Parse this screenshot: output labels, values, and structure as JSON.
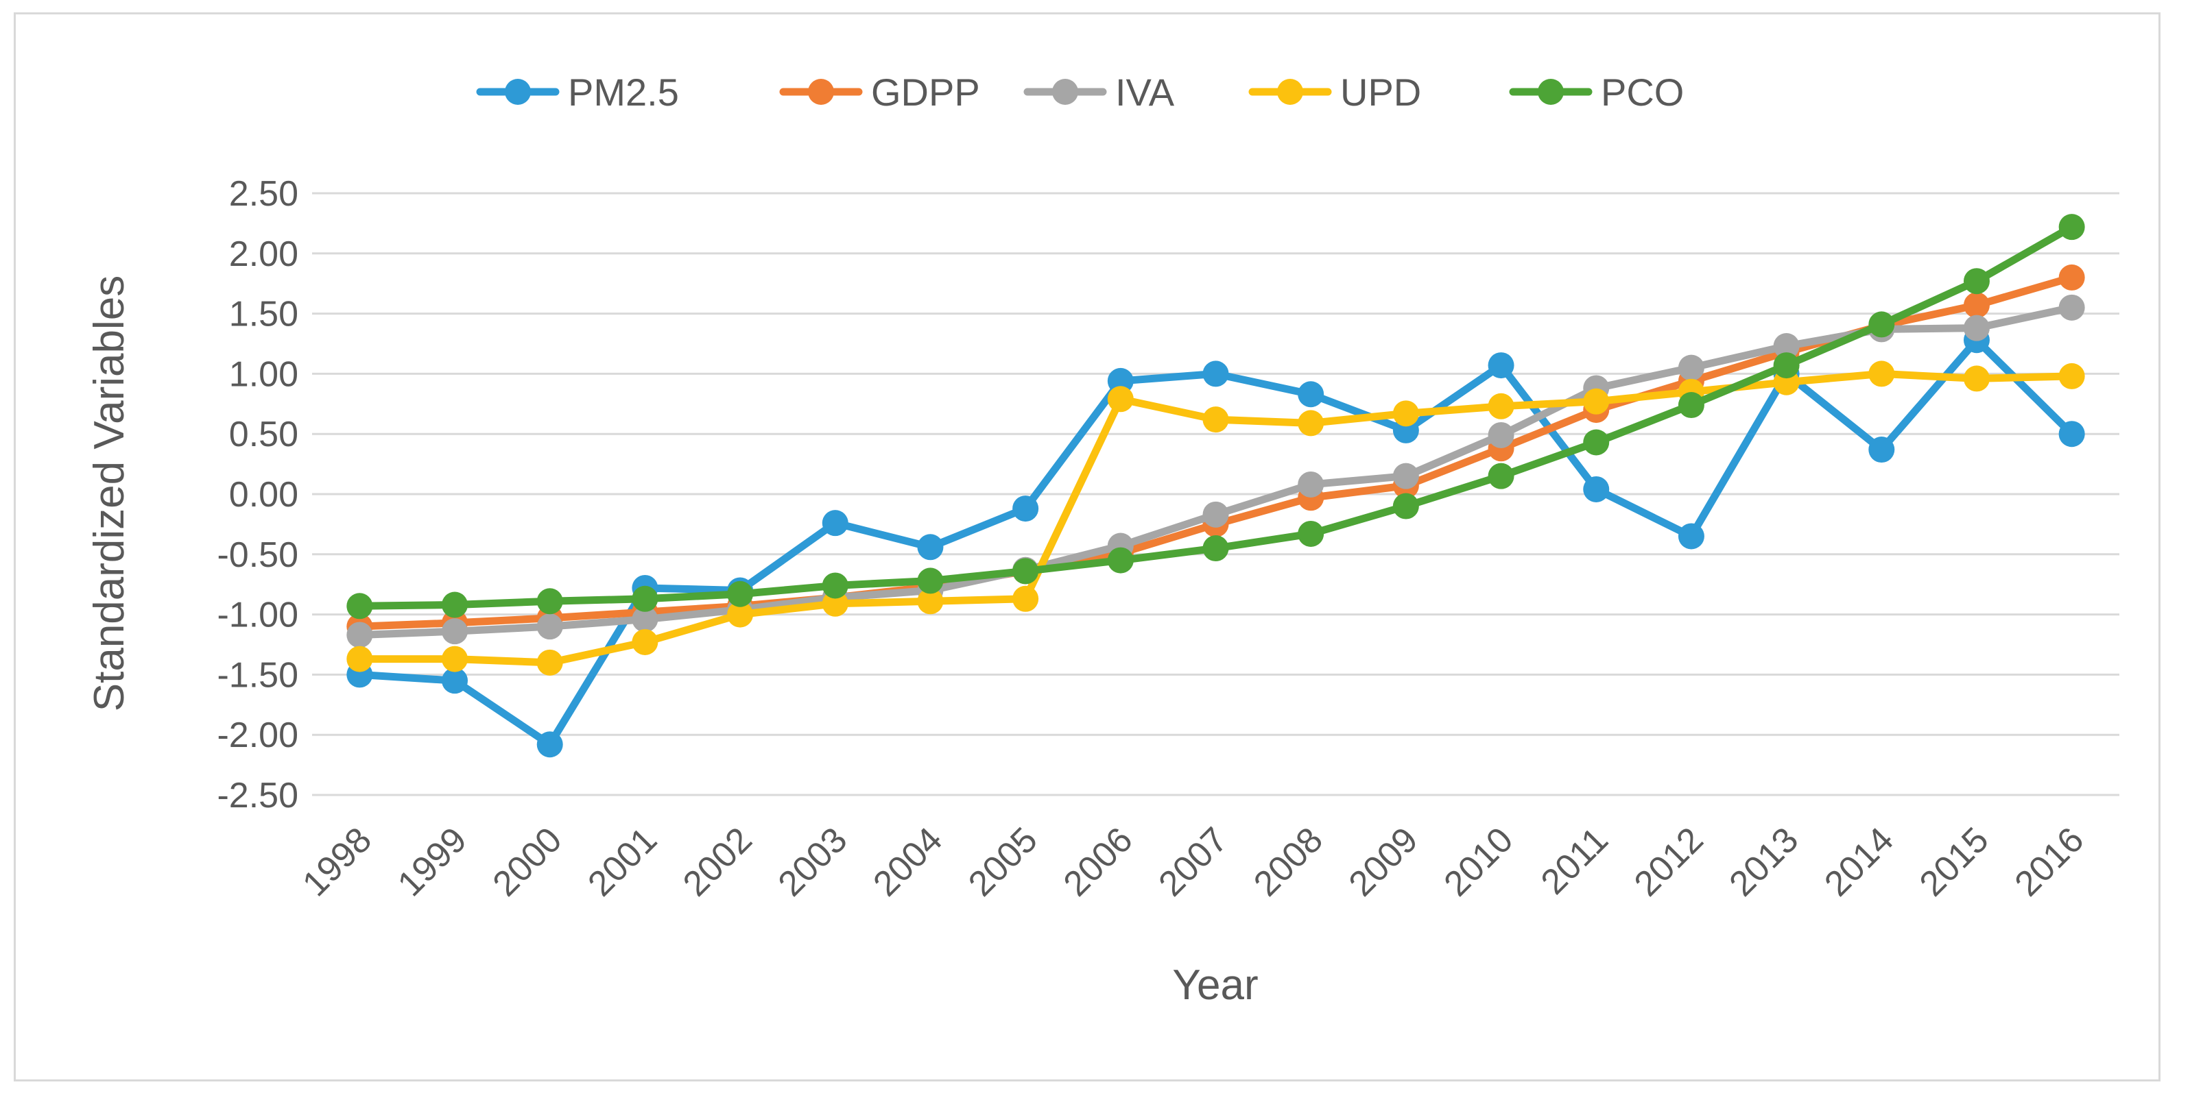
{
  "chart_data": {
    "type": "line",
    "title": "",
    "xlabel": "Year",
    "ylabel": "Standardized Variables",
    "ylim": [
      -2.5,
      2.5
    ],
    "y_ticks": [
      "2.50",
      "2.00",
      "1.50",
      "1.00",
      "0.50",
      "0.00",
      "-0.50",
      "-1.00",
      "-1.50",
      "-2.00",
      "-2.50"
    ],
    "categories": [
      "1998",
      "1999",
      "2000",
      "2001",
      "2002",
      "2003",
      "2004",
      "2005",
      "2006",
      "2007",
      "2008",
      "2009",
      "2010",
      "2011",
      "2012",
      "2013",
      "2014",
      "2015",
      "2016"
    ],
    "grid": true,
    "legend_position": "top",
    "series": [
      {
        "name": "PM2.5",
        "color": "#2e9ad6",
        "values": [
          -1.5,
          -1.55,
          -2.08,
          -0.78,
          -0.8,
          -0.24,
          -0.44,
          -0.12,
          0.94,
          1.0,
          0.83,
          0.53,
          1.07,
          0.04,
          -0.35,
          1.0,
          0.37,
          1.28,
          0.5
        ]
      },
      {
        "name": "GDPP",
        "color": "#f07d33",
        "values": [
          -1.1,
          -1.07,
          -1.03,
          -0.98,
          -0.93,
          -0.86,
          -0.77,
          -0.64,
          -0.49,
          -0.25,
          -0.03,
          0.07,
          0.38,
          0.7,
          0.94,
          1.18,
          1.4,
          1.57,
          1.8
        ]
      },
      {
        "name": "IVA",
        "color": "#a6a6a6",
        "values": [
          -1.17,
          -1.14,
          -1.1,
          -1.04,
          -0.96,
          -0.86,
          -0.8,
          -0.63,
          -0.43,
          -0.17,
          0.08,
          0.15,
          0.49,
          0.88,
          1.05,
          1.23,
          1.37,
          1.38,
          1.55
        ]
      },
      {
        "name": "UPD",
        "color": "#fcc10e",
        "values": [
          -1.37,
          -1.37,
          -1.4,
          -1.23,
          -1.0,
          -0.91,
          -0.89,
          -0.87,
          0.79,
          0.62,
          0.59,
          0.67,
          0.73,
          0.77,
          0.85,
          0.93,
          1.0,
          0.96,
          0.98
        ]
      },
      {
        "name": "PCO",
        "color": "#4da436",
        "values": [
          -0.93,
          -0.92,
          -0.89,
          -0.87,
          -0.83,
          -0.76,
          -0.72,
          -0.64,
          -0.55,
          -0.45,
          -0.33,
          -0.1,
          0.15,
          0.43,
          0.74,
          1.07,
          1.41,
          1.77,
          2.22
        ]
      }
    ]
  }
}
